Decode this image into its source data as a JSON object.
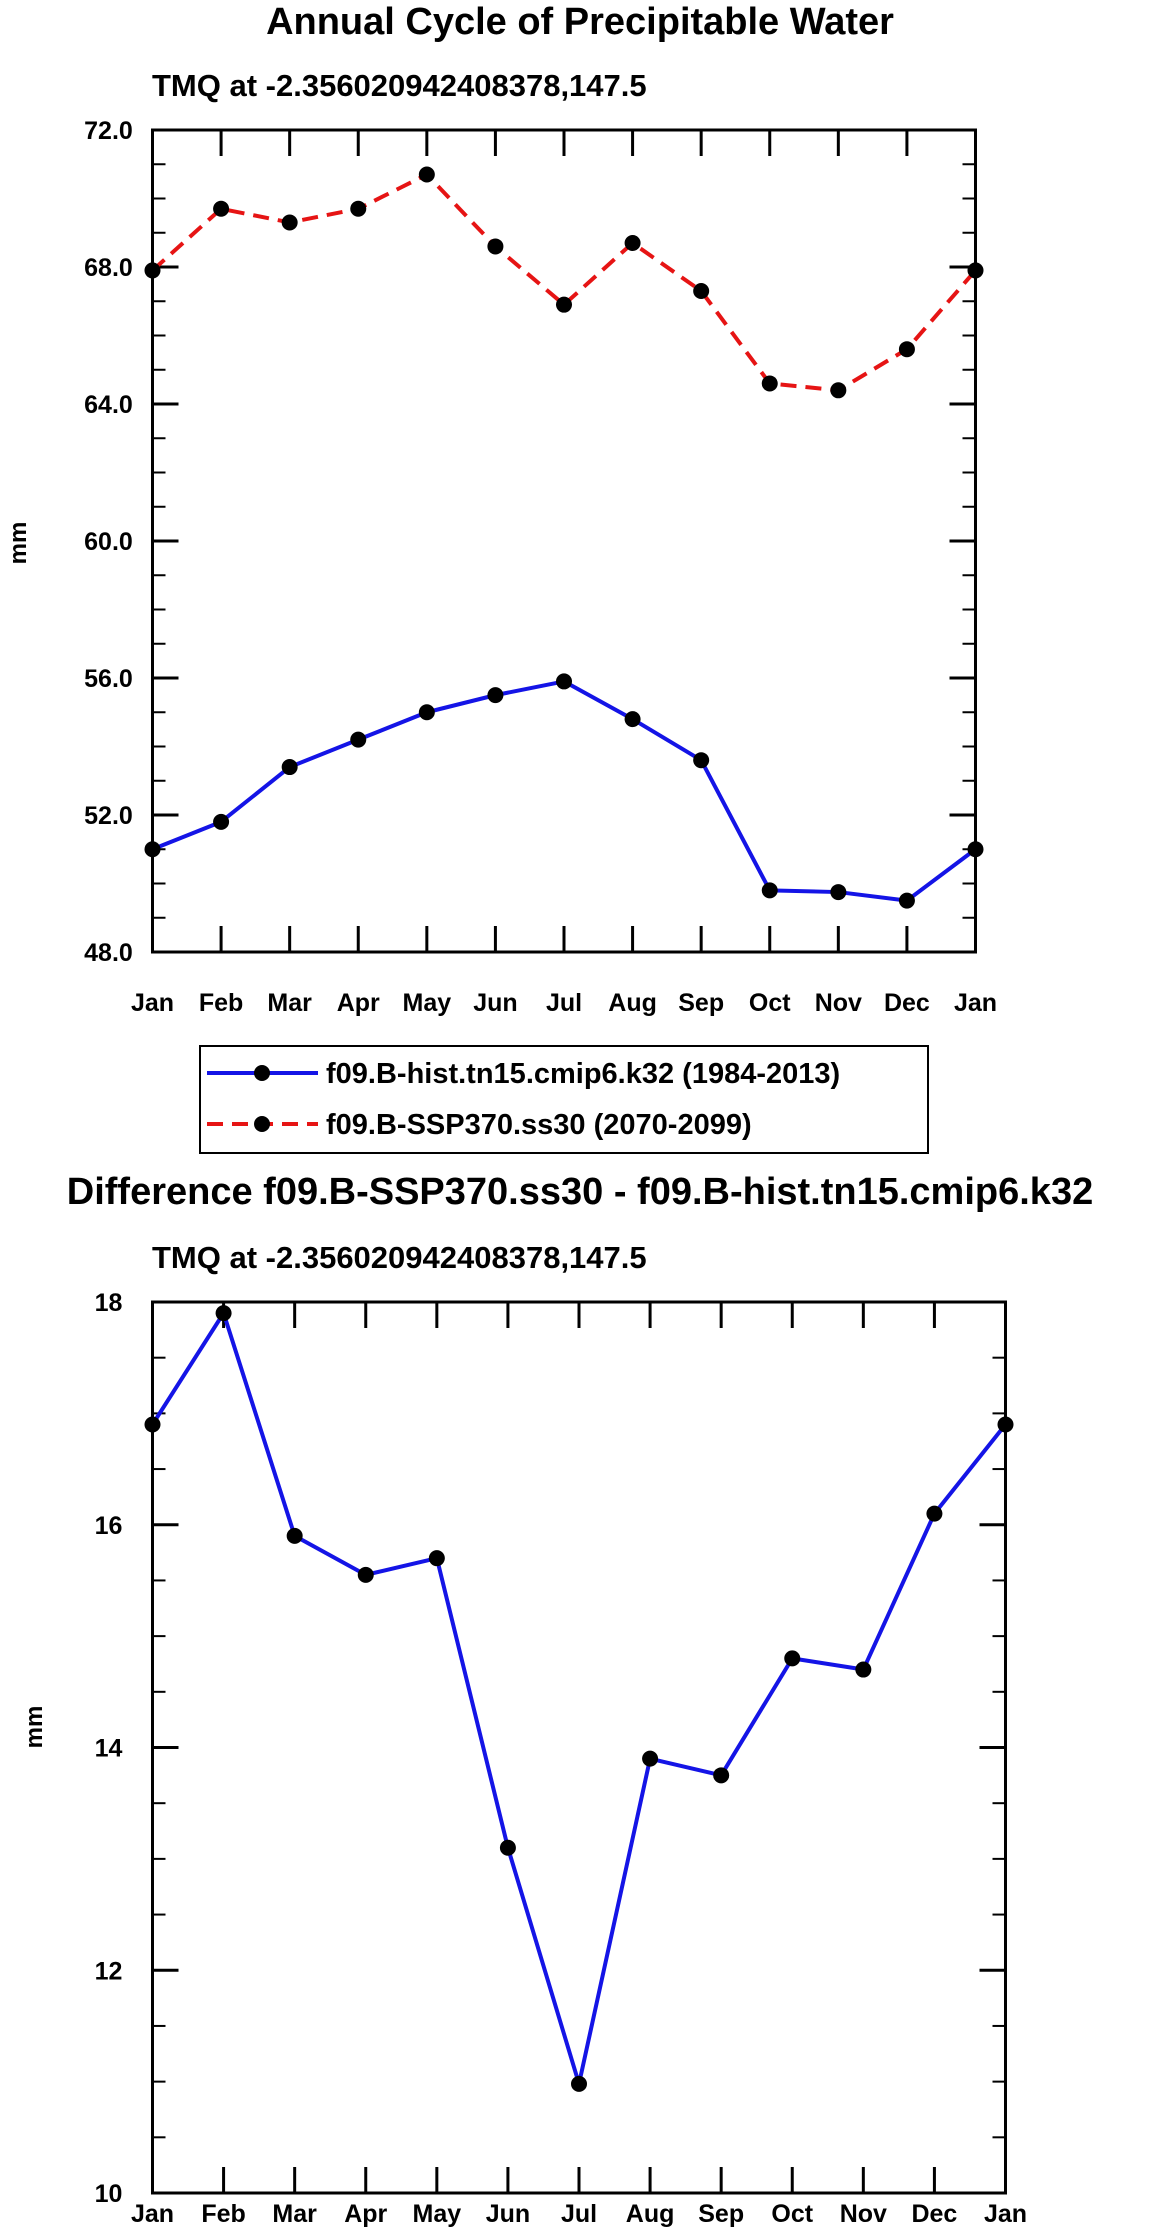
{
  "chart_data": [
    {
      "type": "line",
      "title": "Annual Cycle of Precipitable Water",
      "subtitle": "TMQ at -2.356020942408378,147.5",
      "xlabel": "",
      "ylabel": "mm",
      "categories": [
        "Jan",
        "Feb",
        "Mar",
        "Apr",
        "May",
        "Jun",
        "Jul",
        "Aug",
        "Sep",
        "Oct",
        "Nov",
        "Dec",
        "Jan"
      ],
      "ylim": [
        48.0,
        72.0
      ],
      "yticks": [
        48.0,
        52.0,
        56.0,
        60.0,
        64.0,
        68.0,
        72.0
      ],
      "ytick_labels": [
        "48.0",
        "52.0",
        "56.0",
        "60.0",
        "64.0",
        "68.0",
        "72.0"
      ],
      "y_minor_step": 1.0,
      "series": [
        {
          "name": "f09.B-hist.tn15.cmip6.k32 (1984-2013)",
          "color": "#1414e6",
          "dash": "solid",
          "values": [
            51.0,
            51.8,
            53.4,
            54.2,
            55.0,
            55.5,
            55.9,
            54.8,
            53.6,
            49.8,
            49.75,
            49.5,
            51.0
          ]
        },
        {
          "name": "f09.B-SSP370.ss30 (2070-2099)",
          "color": "#e61414",
          "dash": "dashed",
          "values": [
            67.9,
            69.7,
            69.3,
            69.7,
            70.7,
            68.6,
            66.9,
            68.7,
            67.3,
            64.6,
            64.4,
            65.6,
            67.9
          ]
        }
      ],
      "legend_position": "below"
    },
    {
      "type": "line",
      "title": "Difference f09.B-SSP370.ss30 - f09.B-hist.tn15.cmip6.k32",
      "subtitle": "TMQ at -2.356020942408378,147.5",
      "xlabel": "",
      "ylabel": "mm",
      "categories": [
        "Jan",
        "Feb",
        "Mar",
        "Apr",
        "May",
        "Jun",
        "Jul",
        "Aug",
        "Sep",
        "Oct",
        "Nov",
        "Dec",
        "Jan"
      ],
      "ylim": [
        10,
        18
      ],
      "yticks": [
        10,
        12,
        14,
        16,
        18
      ],
      "ytick_labels": [
        "10",
        "12",
        "14",
        "16",
        "18"
      ],
      "y_minor_step": 0.5,
      "series": [
        {
          "name": "Difference",
          "color": "#1414e6",
          "dash": "solid",
          "values": [
            16.9,
            17.9,
            15.9,
            15.55,
            15.7,
            13.1,
            10.98,
            13.9,
            13.75,
            14.8,
            14.7,
            16.1,
            16.9
          ]
        }
      ]
    }
  ]
}
